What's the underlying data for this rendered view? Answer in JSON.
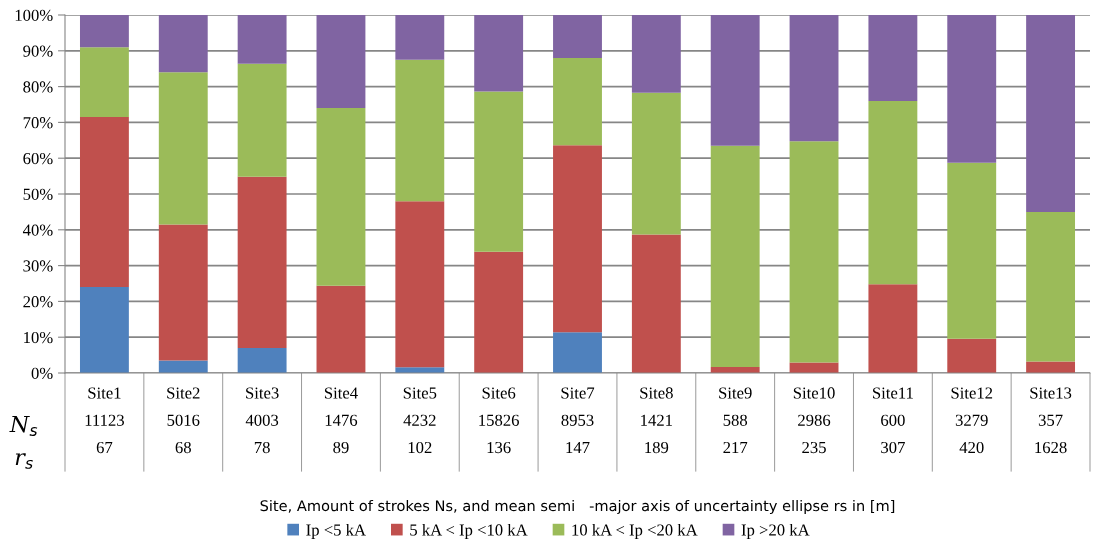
{
  "chart_data": {
    "type": "bar",
    "stacked": true,
    "xlabel": "Site, Amount of strokes Ns, and mean semi   -major axis of uncertainty ellipse rs in [m]",
    "categories": [
      "Site1\n11123\n67",
      "Site2\n5016\n68",
      "Site3\n4003\n78",
      "Site4\n1476\n89",
      "Site5\n4232\n102",
      "Site6\n15826\n136",
      "Site7\n8953\n147",
      "Site8\n1421\n189",
      "Site9\n588\n217",
      "Site10\n2986\n235",
      "Site11\n600\n307",
      "Site12\n3279\n420",
      "Site13\n357\n1628"
    ],
    "series": [
      {
        "name": "Ip <5 kA",
        "color": "#4f81bd",
        "values": [
          24.0,
          3.5,
          7.0,
          0,
          1.6,
          null,
          11.4,
          null,
          0,
          0,
          0,
          null,
          0
        ]
      },
      {
        "name": "5 kA < Ip <10 kA",
        "color": "#c0504d",
        "values": [
          47.5,
          38.0,
          47.8,
          24.4,
          46.4,
          33.9,
          52.2,
          38.7,
          1.7,
          2.9,
          24.8,
          9.6,
          3.2
        ]
      },
      {
        "name": "10 kA < Ip <20 kA",
        "color": "#9bbb59",
        "values": [
          19.5,
          42.5,
          31.6,
          49.6,
          39.5,
          44.7,
          24.4,
          39.6,
          61.8,
          61.8,
          51.2,
          49.1,
          41.8
        ]
      },
      {
        "name": "Ip >20 kA",
        "color": "#8064a2",
        "values": [
          9.0,
          16.0,
          13.6,
          26.0,
          12.5,
          21.4,
          12.0,
          21.7,
          36.5,
          35.3,
          24.0,
          41.3,
          55.0
        ]
      }
    ],
    "ylim": [
      0,
      100
    ],
    "yticks": [
      {
        "value": 0,
        "label": "0%"
      },
      {
        "value": 10,
        "label": "10%"
      },
      {
        "value": 20,
        "label": "20%"
      },
      {
        "value": 30,
        "label": "30%"
      },
      {
        "value": 40,
        "label": "40%"
      },
      {
        "value": 50,
        "label": "50%"
      },
      {
        "value": 60,
        "label": "60%"
      },
      {
        "value": 70,
        "label": "70%"
      },
      {
        "value": 80,
        "label": "80%"
      },
      {
        "value": 90,
        "label": "90%"
      },
      {
        "value": 100,
        "label": "100%"
      }
    ],
    "grid": "y",
    "legend": "bottom",
    "annotations": [
      "N$_{s}$",
      "r$_{s}$"
    ]
  }
}
